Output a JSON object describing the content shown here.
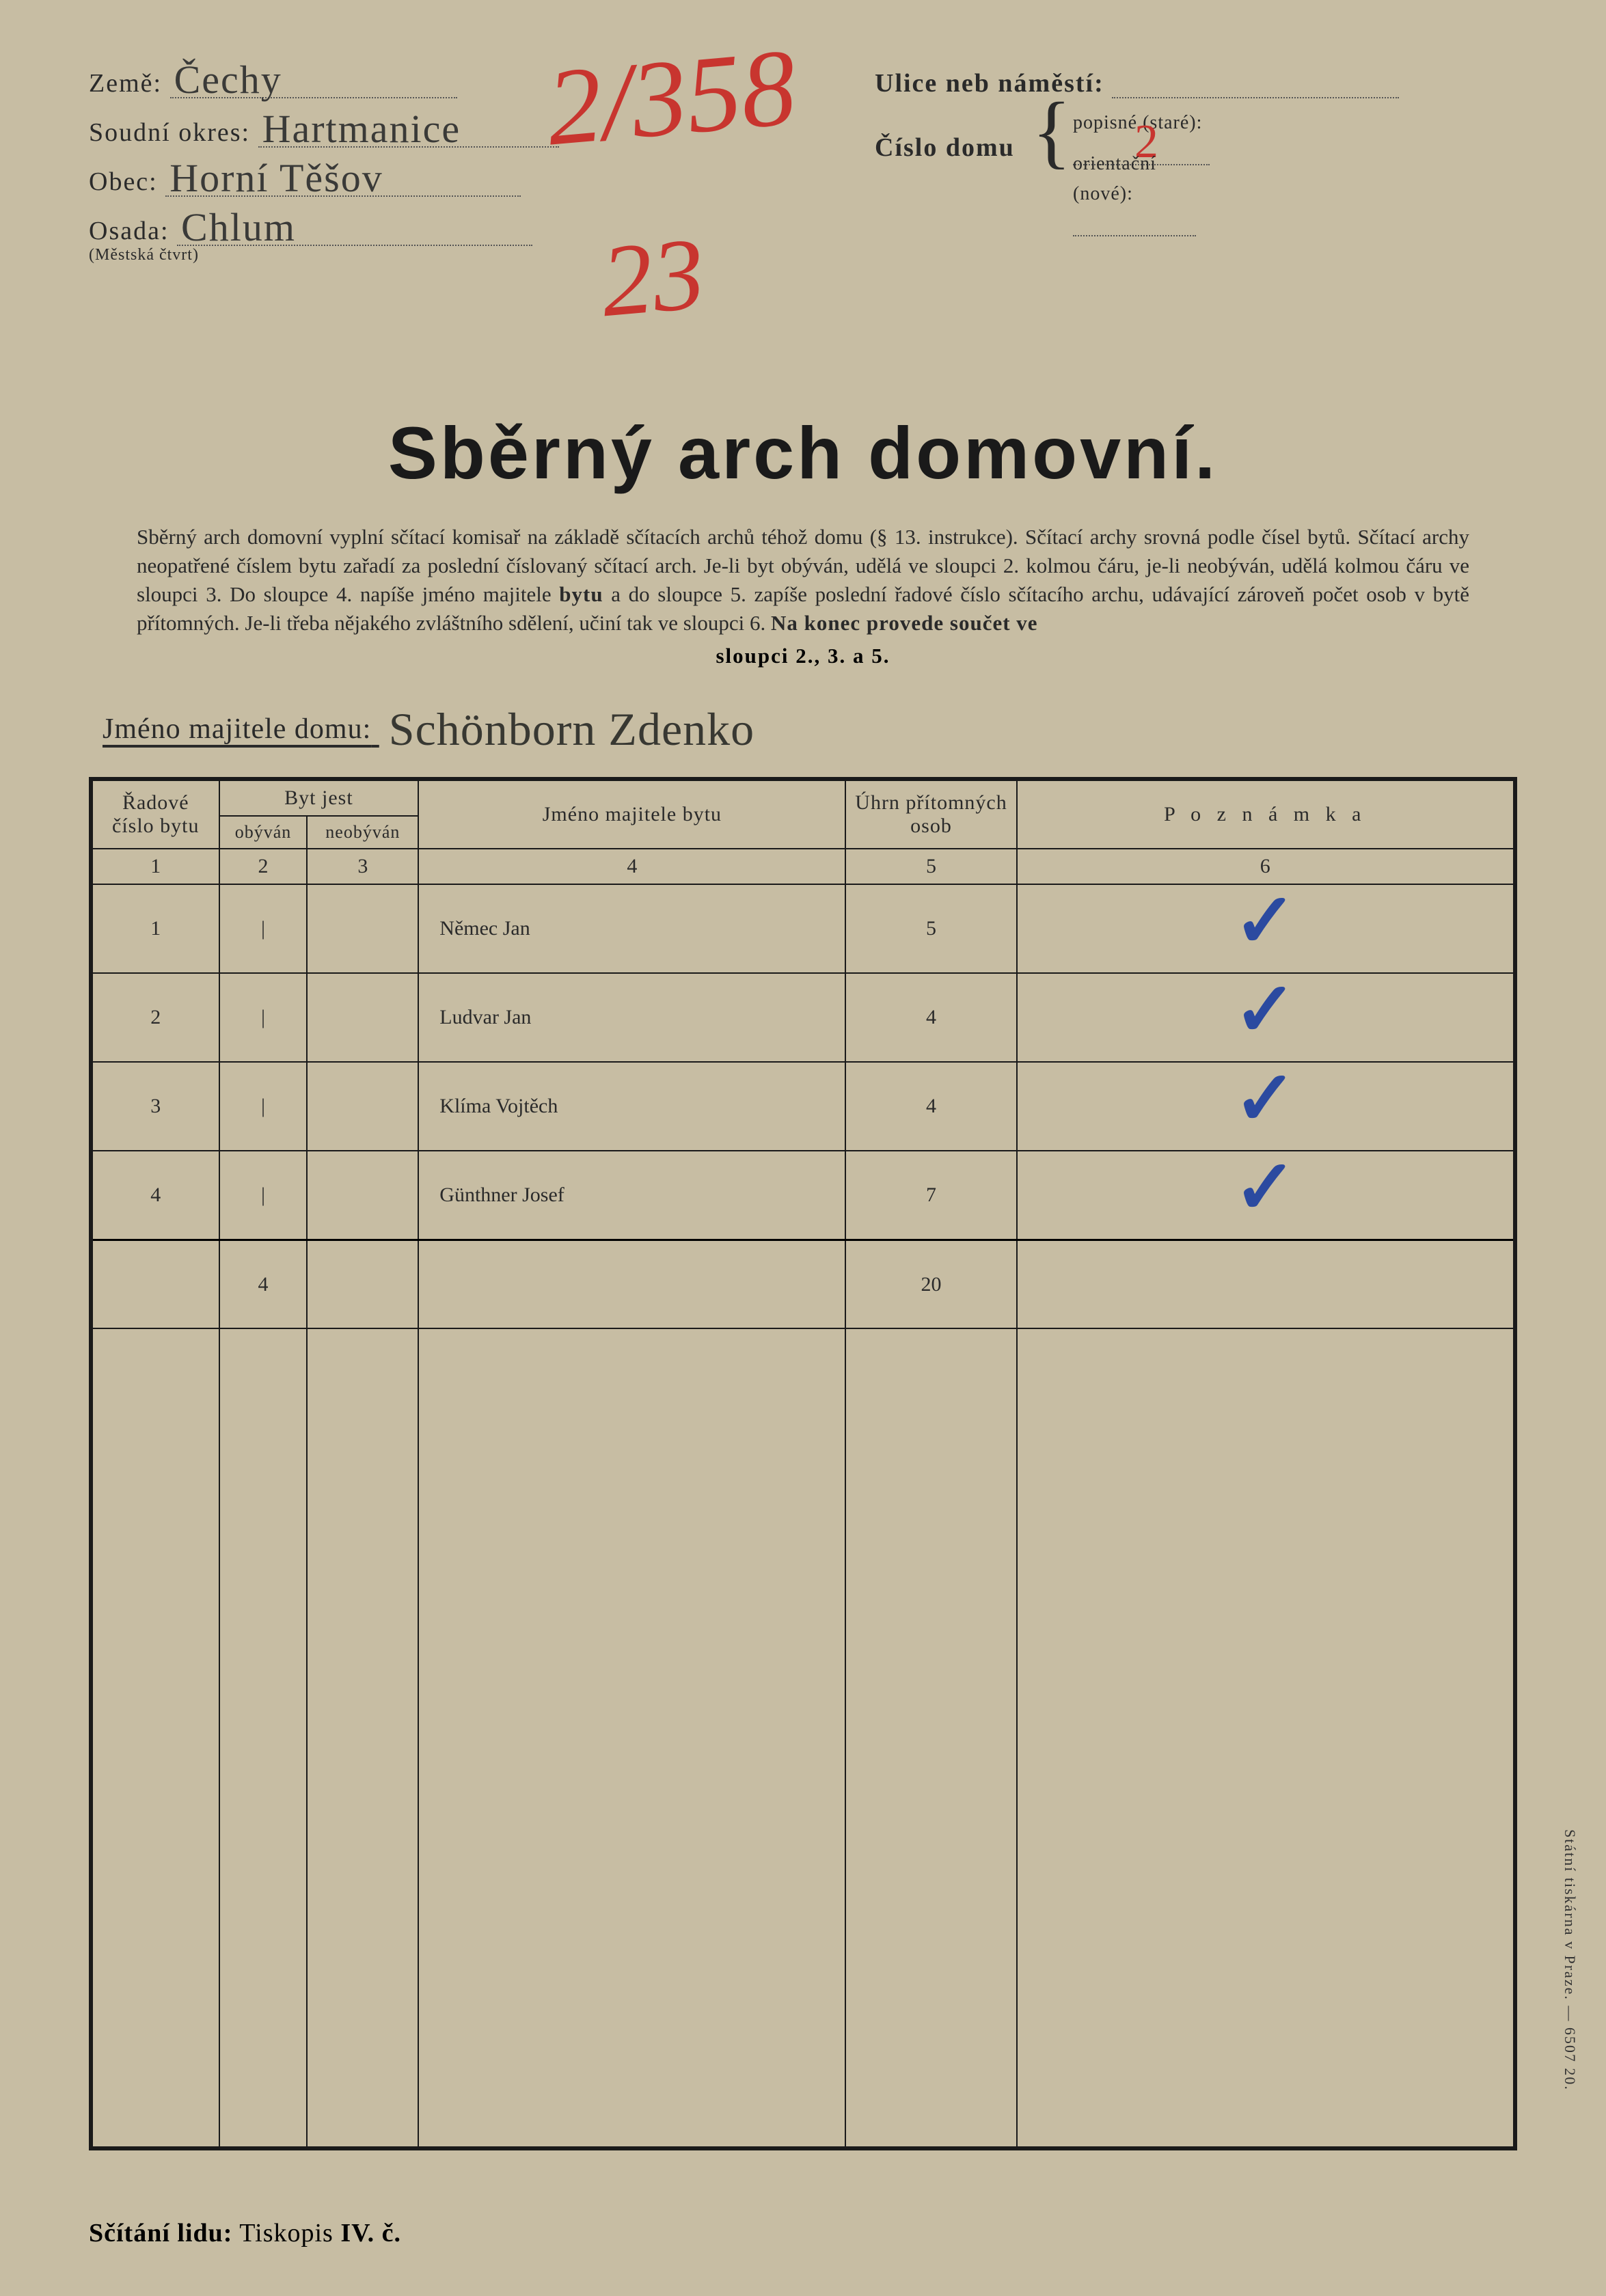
{
  "form": {
    "labels": {
      "zeme": "Země:",
      "soudni_okres": "Soudní okres:",
      "obec": "Obec:",
      "osada": "Osada:",
      "osada_sub": "(Městská čtvrt)",
      "ulice": "Ulice neb náměstí:",
      "cislo_domu": "Číslo domu",
      "popisne": "popisné (staré):",
      "orientacni": "orientační (nové):"
    },
    "values": {
      "zeme": "Čechy",
      "soudni_okres": "Hartmanice",
      "obec": "Horní Těšov",
      "osada": "Chlum",
      "ulice": "",
      "popisne": "2",
      "orientacni": ""
    },
    "big_annotations": {
      "top": "2/358",
      "mid": "23"
    }
  },
  "title": "Sběrný arch domovní.",
  "instructions": {
    "body": "Sběrný arch domovní vyplní sčítací komisař na základě sčítacích archů téhož domu (§ 13. instrukce). Sčítací archy srovná podle čísel bytů. Sčítací archy neopatřené číslem bytu zařadí za poslední číslovaný sčítací arch. Je-li byt obýván, udělá ve sloupci 2. kolmou čáru, je-li neobýván, udělá kolmou čáru ve sloupci 3. Do sloupce 4. napíše jméno majitele ",
    "bold1": "bytu",
    "body2": " a do sloupce 5. zapíše poslední řadové číslo sčítacího archu, udávající zároveň počet osob v bytě přítomných. Je-li třeba nějakého zvláštního sdělení, učiní tak ve sloupci 6. ",
    "bold2": "Na konec provede součet ve",
    "tail": "sloupci 2., 3. a 5."
  },
  "owner": {
    "label": "Jméno majitele domu:",
    "value": "Schönborn Zdenko"
  },
  "table": {
    "headers": {
      "col1": "Řadové číslo bytu",
      "col23": "Byt jest",
      "col2": "obýván",
      "col3": "neobýván",
      "col4": "Jméno majitele bytu",
      "col5": "Úhrn přítomných osob",
      "col6": "P o z n á m k a"
    },
    "colnums": {
      "c1": "1",
      "c2": "2",
      "c3": "3",
      "c4": "4",
      "c5": "5",
      "c6": "6"
    },
    "rows": [
      {
        "num": "1",
        "obyvan": "|",
        "neobyvan": "",
        "name": "Němec Jan",
        "count": "5",
        "note_check": true
      },
      {
        "num": "2",
        "obyvan": "|",
        "neobyvan": "",
        "name": "Ludvar Jan",
        "count": "4",
        "note_check": true
      },
      {
        "num": "3",
        "obyvan": "|",
        "neobyvan": "",
        "name": "Klíma Vojtěch",
        "count": "4",
        "note_check": true
      },
      {
        "num": "4",
        "obyvan": "|",
        "neobyvan": "",
        "name": "Günthner Josef",
        "count": "7",
        "note_check": true
      }
    ],
    "totals": {
      "obyvan": "4",
      "count": "20"
    }
  },
  "footer": {
    "bold": "Sčítání lidu:",
    "light": " Tiskopis ",
    "bold2": "IV. č."
  },
  "side_print": "Státní tiskárna v Praze. — 6507 20.",
  "colors": {
    "paper": "#c7bda3",
    "ink": "#1a1a1a",
    "pencil": "#3a3a38",
    "red": "#c8352f",
    "blue": "#2b4aa0"
  }
}
